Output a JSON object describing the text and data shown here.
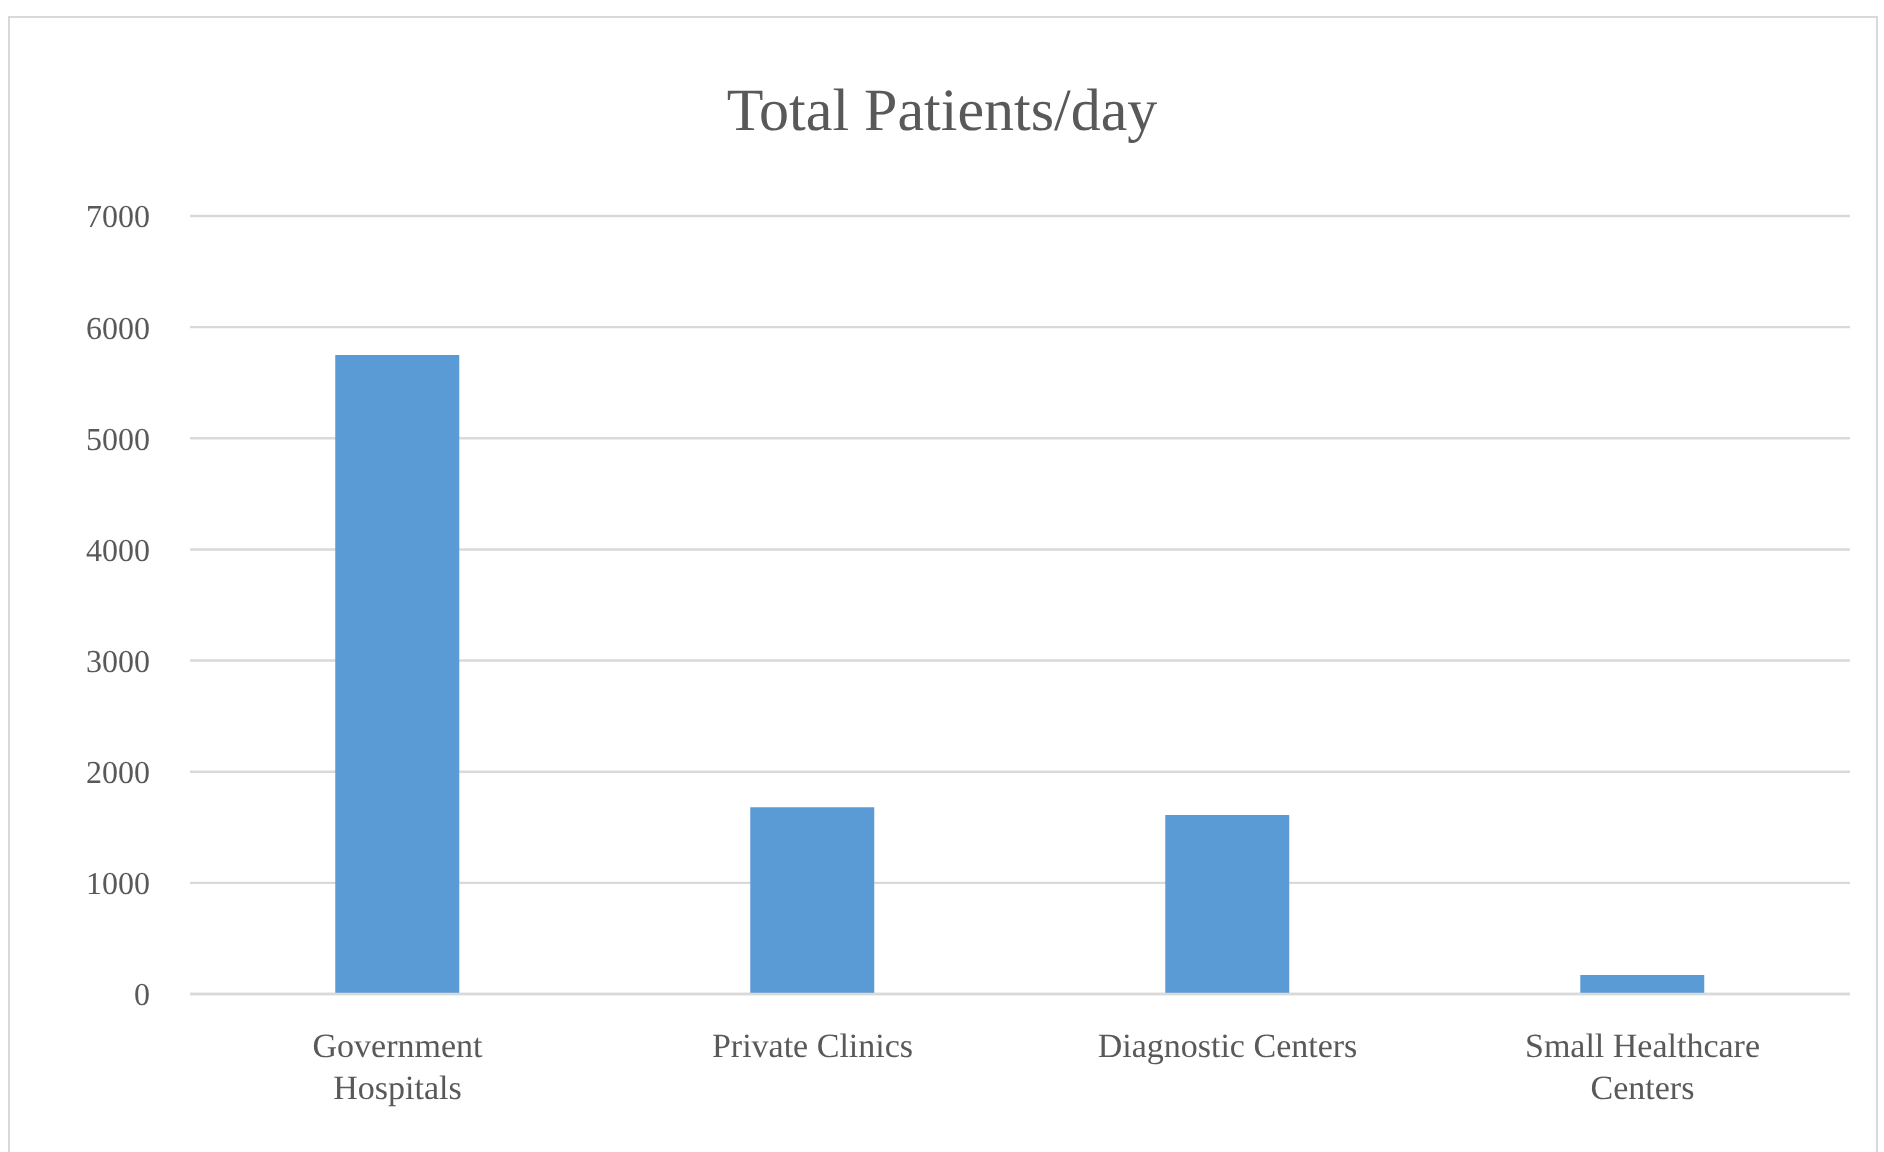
{
  "chart_data": {
    "type": "bar",
    "title": "Total Patients/day",
    "categories": [
      "Government Hospitals",
      "Private Clinics",
      "Diagnostic Centers",
      "Small Healthcare Centers"
    ],
    "values": [
      5750,
      1680,
      1610,
      170
    ],
    "color": "#5b9bd5",
    "ylim": [
      0,
      7000
    ],
    "yticks": [
      0,
      1000,
      2000,
      3000,
      4000,
      5000,
      6000,
      7000
    ],
    "grid": "y"
  }
}
